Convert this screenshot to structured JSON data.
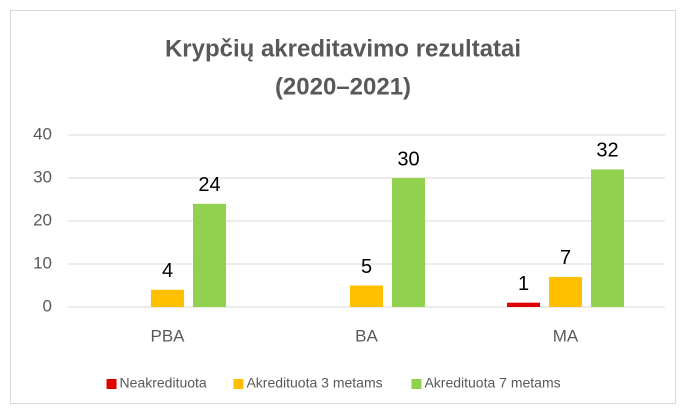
{
  "chart_data": {
    "type": "bar",
    "title": [
      "Krypčių akreditavimo rezultatai",
      "(2020–2021)"
    ],
    "categories": [
      "PBA",
      "BA",
      "MA"
    ],
    "series": [
      {
        "name": "Neakredituota",
        "color": "#e00000",
        "values": [
          null,
          null,
          1
        ]
      },
      {
        "name": "Akredituota 3 metams",
        "color": "#ffc000",
        "values": [
          4,
          5,
          7
        ]
      },
      {
        "name": "Akredituota 7 metams",
        "color": "#92d050",
        "values": [
          24,
          30,
          32
        ]
      }
    ],
    "ylim": [
      0,
      40
    ],
    "yticks": [
      0,
      10,
      20,
      30,
      40
    ],
    "grid": true,
    "legend": "bottom"
  }
}
